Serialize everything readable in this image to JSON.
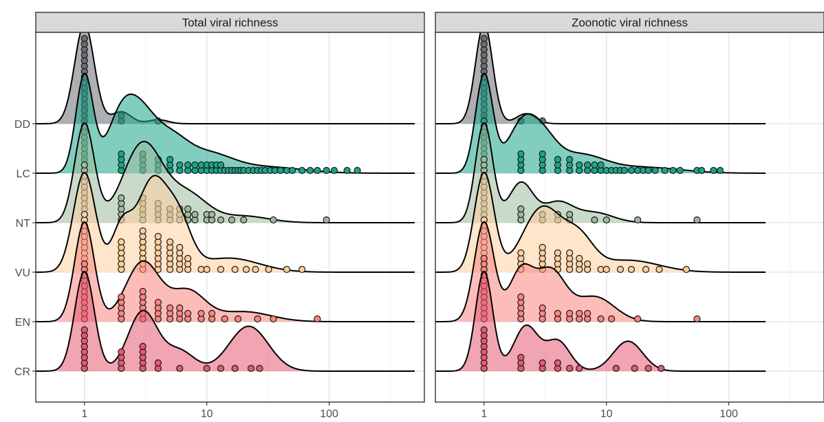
{
  "chart_data": {
    "type": "ridgeline",
    "x_scale": "log10",
    "x_ticks": [
      1,
      10,
      100
    ],
    "x_tick_labels": [
      "1",
      "10",
      "100"
    ],
    "xlim": [
      0.4,
      600
    ],
    "categories": [
      "DD",
      "LC",
      "NT",
      "VU",
      "EN",
      "CR"
    ],
    "grid": true,
    "legend": "none",
    "colors": {
      "DD": "#6b6e72",
      "LC": "#1aa58a",
      "NT": "#9fbb9f",
      "VU": "#ffcf9e",
      "EN": "#fa8780",
      "CR": "#e55a72"
    },
    "panels": [
      {
        "title": "Total viral richness",
        "range": [
          0.4,
          500
        ],
        "series": [
          {
            "name": "DD",
            "peaks": [
              [
                1,
                1.0,
                0.08
              ],
              [
                2,
                0.12,
                0.08
              ],
              [
                4,
                0.04,
                0.08
              ]
            ],
            "points": [
              [
                1,
                16
              ],
              [
                2,
                2
              ],
              [
                4,
                1
              ]
            ]
          },
          {
            "name": "LC",
            "peaks": [
              [
                1,
                0.95,
                0.07
              ],
              [
                2,
                0.55,
                0.12
              ],
              [
                3,
                0.42,
                0.12
              ],
              [
                5,
                0.3,
                0.14
              ],
              [
                10,
                0.18,
                0.2
              ],
              [
                30,
                0.06,
                0.3
              ]
            ],
            "points": [
              [
                1,
                9
              ],
              [
                2,
                4
              ],
              [
                3,
                4
              ],
              [
                4,
                3
              ],
              [
                5,
                3
              ],
              [
                6,
                2
              ],
              [
                7,
                2
              ],
              [
                8,
                2
              ],
              [
                9,
                2
              ],
              [
                10,
                2
              ],
              [
                11,
                2
              ],
              [
                12,
                2
              ],
              [
                13,
                2
              ],
              [
                14,
                1
              ],
              [
                15,
                1
              ],
              [
                16,
                1
              ],
              [
                17,
                1
              ],
              [
                18,
                1
              ],
              [
                19,
                1
              ],
              [
                20,
                1
              ],
              [
                22,
                1
              ],
              [
                24,
                1
              ],
              [
                26,
                1
              ],
              [
                28,
                1
              ],
              [
                30,
                1
              ],
              [
                33,
                1
              ],
              [
                36,
                1
              ],
              [
                40,
                1
              ],
              [
                45,
                1
              ],
              [
                50,
                1
              ],
              [
                60,
                1
              ],
              [
                70,
                1
              ],
              [
                80,
                1
              ],
              [
                95,
                1
              ],
              [
                110,
                1
              ],
              [
                140,
                1
              ],
              [
                170,
                1
              ]
            ]
          },
          {
            "name": "NT",
            "peaks": [
              [
                1,
                0.9,
                0.08
              ],
              [
                3,
                0.72,
                0.16
              ],
              [
                7,
                0.25,
                0.16
              ],
              [
                20,
                0.06,
                0.2
              ]
            ],
            "points": [
              [
                1,
                11
              ],
              [
                2,
                5
              ],
              [
                3,
                5
              ],
              [
                4,
                4
              ],
              [
                5,
                3
              ],
              [
                6,
                3
              ],
              [
                7,
                3
              ],
              [
                8,
                2
              ],
              [
                10,
                2
              ],
              [
                11,
                2
              ],
              [
                13,
                1
              ],
              [
                16,
                1
              ],
              [
                20,
                1
              ],
              [
                35,
                1
              ],
              [
                95,
                1
              ]
            ]
          },
          {
            "name": "VU",
            "peaks": [
              [
                1,
                0.85,
                0.09
              ],
              [
                2,
                0.35,
                0.08
              ],
              [
                3.6,
                0.78,
                0.13
              ],
              [
                6,
                0.35,
                0.1
              ],
              [
                15,
                0.12,
                0.25
              ]
            ],
            "points": [
              [
                1,
                11
              ],
              [
                2,
                6
              ],
              [
                3,
                8
              ],
              [
                4,
                7
              ],
              [
                5,
                6
              ],
              [
                6,
                5
              ],
              [
                7,
                3
              ],
              [
                9,
                1
              ],
              [
                10,
                1
              ],
              [
                13,
                1
              ],
              [
                17,
                1
              ],
              [
                21,
                1
              ],
              [
                25,
                1
              ],
              [
                32,
                1
              ],
              [
                45,
                1
              ],
              [
                60,
                1
              ]
            ]
          },
          {
            "name": "EN",
            "peaks": [
              [
                1,
                1.0,
                0.08
              ],
              [
                3,
                0.6,
                0.14
              ],
              [
                7,
                0.3,
                0.14
              ],
              [
                20,
                0.1,
                0.22
              ]
            ],
            "points": [
              [
                1,
                11
              ],
              [
                2,
                5
              ],
              [
                3,
                6
              ],
              [
                4,
                4
              ],
              [
                5,
                3
              ],
              [
                6,
                3
              ],
              [
                7,
                2
              ],
              [
                9,
                2
              ],
              [
                11,
                2
              ],
              [
                14,
                1
              ],
              [
                18,
                1
              ],
              [
                26,
                1
              ],
              [
                35,
                1
              ],
              [
                80,
                1
              ]
            ]
          },
          {
            "name": "CR",
            "peaks": [
              [
                1,
                1.0,
                0.08
              ],
              [
                3,
                0.6,
                0.12
              ],
              [
                6,
                0.2,
                0.12
              ],
              [
                22,
                0.45,
                0.16
              ]
            ],
            "points": [
              [
                1,
                8
              ],
              [
                2,
                4
              ],
              [
                3,
                5
              ],
              [
                4,
                2
              ],
              [
                6,
                1
              ],
              [
                10,
                1
              ],
              [
                13,
                1
              ],
              [
                17,
                1
              ],
              [
                23,
                1
              ],
              [
                27,
                1
              ]
            ]
          }
        ]
      },
      {
        "title": "Zoonotic viral richness",
        "range": [
          0.4,
          200
        ],
        "series": [
          {
            "name": "DD",
            "peaks": [
              [
                1,
                1.0,
                0.07
              ],
              [
                2.2,
                0.1,
                0.08
              ]
            ],
            "points": [
              [
                1,
                16
              ],
              [
                2,
                1
              ],
              [
                3,
                1
              ]
            ]
          },
          {
            "name": "LC",
            "peaks": [
              [
                1,
                1.0,
                0.07
              ],
              [
                2,
                0.45,
                0.12
              ],
              [
                3,
                0.3,
                0.12
              ],
              [
                6,
                0.18,
                0.2
              ],
              [
                20,
                0.06,
                0.3
              ]
            ],
            "points": [
              [
                1,
                10
              ],
              [
                2,
                4
              ],
              [
                3,
                4
              ],
              [
                4,
                3
              ],
              [
                5,
                3
              ],
              [
                6,
                2
              ],
              [
                7,
                2
              ],
              [
                8,
                2
              ],
              [
                9,
                2
              ],
              [
                10,
                1
              ],
              [
                11,
                1
              ],
              [
                12,
                1
              ],
              [
                13,
                1
              ],
              [
                14,
                1
              ],
              [
                16,
                1
              ],
              [
                18,
                1
              ],
              [
                20,
                1
              ],
              [
                22,
                1
              ],
              [
                25,
                1
              ],
              [
                30,
                1
              ],
              [
                35,
                1
              ],
              [
                40,
                1
              ],
              [
                55,
                1
              ],
              [
                60,
                1
              ],
              [
                75,
                1
              ],
              [
                85,
                1
              ]
            ]
          },
          {
            "name": "NT",
            "peaks": [
              [
                1,
                1.0,
                0.07
              ],
              [
                2,
                0.4,
                0.1
              ],
              [
                4,
                0.2,
                0.12
              ],
              [
                8,
                0.1,
                0.15
              ]
            ],
            "points": [
              [
                1,
                12
              ],
              [
                2,
                3
              ],
              [
                3,
                2
              ],
              [
                4,
                2
              ],
              [
                5,
                2
              ],
              [
                8,
                1
              ],
              [
                10,
                1
              ],
              [
                18,
                1
              ],
              [
                55,
                1
              ]
            ]
          },
          {
            "name": "VU",
            "peaks": [
              [
                1,
                1.0,
                0.08
              ],
              [
                3,
                0.65,
                0.16
              ],
              [
                6,
                0.3,
                0.12
              ],
              [
                15,
                0.12,
                0.25
              ]
            ],
            "points": [
              [
                1,
                10
              ],
              [
                2,
                4
              ],
              [
                3,
                5
              ],
              [
                4,
                4
              ],
              [
                5,
                4
              ],
              [
                6,
                3
              ],
              [
                7,
                2
              ],
              [
                9,
                1
              ],
              [
                10,
                1
              ],
              [
                13,
                1
              ],
              [
                16,
                1
              ],
              [
                21,
                1
              ],
              [
                27,
                1
              ],
              [
                45,
                1
              ]
            ]
          },
          {
            "name": "EN",
            "peaks": [
              [
                1,
                1.0,
                0.08
              ],
              [
                2,
                0.5,
                0.1
              ],
              [
                3.5,
                0.5,
                0.12
              ],
              [
                8,
                0.25,
                0.16
              ]
            ],
            "points": [
              [
                1,
                12
              ],
              [
                2,
                5
              ],
              [
                3,
                3
              ],
              [
                4,
                2
              ],
              [
                5,
                2
              ],
              [
                6,
                2
              ],
              [
                7,
                2
              ],
              [
                9,
                1
              ],
              [
                11,
                1
              ],
              [
                18,
                1
              ],
              [
                55,
                1
              ]
            ]
          },
          {
            "name": "CR",
            "peaks": [
              [
                1,
                1.0,
                0.07
              ],
              [
                2.2,
                0.45,
                0.1
              ],
              [
                4,
                0.3,
                0.1
              ],
              [
                15,
                0.3,
                0.12
              ]
            ],
            "points": [
              [
                1,
                8
              ],
              [
                2,
                3
              ],
              [
                3,
                2
              ],
              [
                4,
                2
              ],
              [
                5,
                1
              ],
              [
                6,
                1
              ],
              [
                12,
                1
              ],
              [
                17,
                1
              ],
              [
                22,
                1
              ],
              [
                28,
                1
              ]
            ]
          }
        ]
      }
    ]
  }
}
